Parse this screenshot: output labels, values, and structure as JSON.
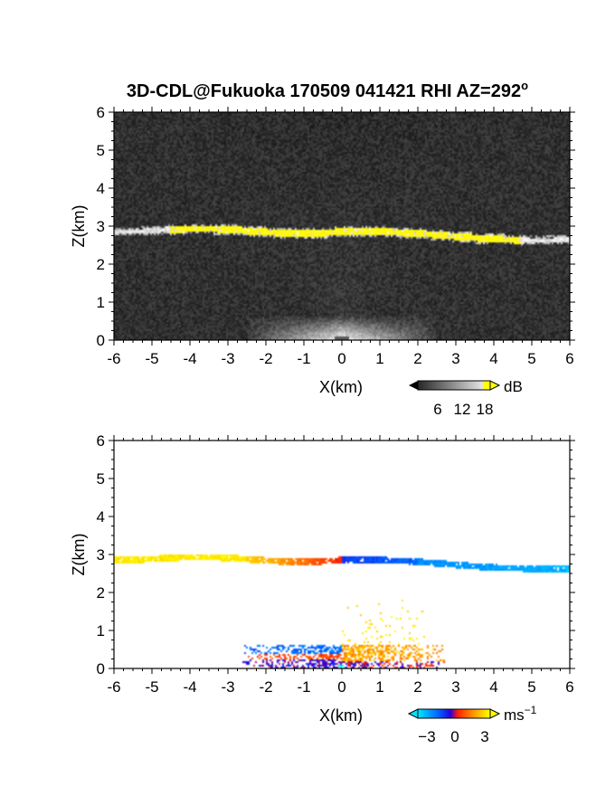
{
  "title": "3D-CDL@Fukuoka 170509 041421 RHI AZ=292",
  "title_sup": "o",
  "chart_data": [
    {
      "type": "heatmap",
      "variable": "intensity",
      "xlabel": "X(km)",
      "ylabel": "Z(km)",
      "xlim": [
        -6,
        6
      ],
      "ylim": [
        0,
        6
      ],
      "xticks": [
        "-6",
        "-5",
        "-4",
        "-3",
        "-2",
        "-1",
        "0",
        "1",
        "2",
        "3",
        "4",
        "5",
        "6"
      ],
      "yticks": [
        "0",
        "1",
        "2",
        "3",
        "4",
        "5",
        "6"
      ],
      "colorbar": {
        "unit": "dB",
        "ticks": [
          "6",
          "12",
          "18"
        ],
        "range": [
          0,
          20
        ]
      },
      "layer": {
        "x": [
          -6,
          6
        ],
        "z_left": 2.9,
        "z_center": 2.85,
        "z_right": 2.62,
        "bright_x": [
          -4.5,
          4.7
        ]
      },
      "ground_echo": {
        "x": [
          -2.5,
          2.5
        ],
        "z_top": 0.6
      }
    },
    {
      "type": "heatmap",
      "variable": "velocity",
      "xlabel": "X(km)",
      "ylabel": "Z(km)",
      "xlim": [
        -6,
        6
      ],
      "ylim": [
        0,
        6
      ],
      "xticks": [
        "-6",
        "-5",
        "-4",
        "-3",
        "-2",
        "-1",
        "0",
        "1",
        "2",
        "3",
        "4",
        "5",
        "6"
      ],
      "yticks": [
        "0",
        "1",
        "2",
        "3",
        "4",
        "5",
        "6"
      ],
      "colorbar": {
        "unit": "ms",
        "unit_sup": "−1",
        "ticks": [
          "−3",
          "0",
          "3"
        ],
        "range": [
          -4,
          4
        ]
      },
      "layer": {
        "x": [
          -6,
          6
        ],
        "z_left": 2.9,
        "z_right": 2.62,
        "velocity_left": 3.5,
        "velocity_right": -2.5
      },
      "low_region": {
        "x": [
          -2.8,
          2.8
        ],
        "z_top": 0.6,
        "scatter_top": 1.8
      }
    }
  ],
  "colors": {
    "positive": "#ffff00",
    "zero": "#ff2000",
    "negative": "#0000ff",
    "cyan": "#00e0ff",
    "background_dark": "#262626"
  }
}
